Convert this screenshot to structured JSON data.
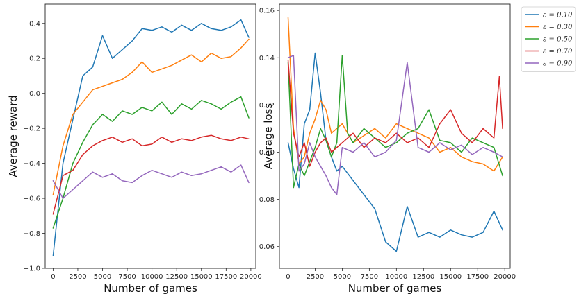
{
  "chart_data": [
    {
      "type": "line",
      "xlabel": "Number of games",
      "ylabel": "Average reward",
      "xlim": [
        -800,
        20500
      ],
      "ylim": [
        -1.0,
        0.51
      ],
      "xticks": [
        0,
        2500,
        5000,
        7500,
        10000,
        12500,
        15000,
        17500,
        20000
      ],
      "yticks": [
        -1.0,
        -0.8,
        -0.6,
        -0.4,
        -0.2,
        0.0,
        0.2,
        0.4
      ],
      "ytick_labels": [
        "−1.0",
        "−0.8",
        "−0.6",
        "−0.4",
        "−0.2",
        "0.0",
        "0.2",
        "0.4"
      ],
      "grid": false,
      "series": [
        {
          "name": "ε = 0.10",
          "color": "#1f77b4",
          "x": [
            0,
            1000,
            2000,
            3000,
            4000,
            5000,
            6000,
            7000,
            8000,
            9000,
            10000,
            11000,
            12000,
            13000,
            14000,
            15000,
            16000,
            17000,
            18000,
            19000,
            19800
          ],
          "y": [
            -0.93,
            -0.4,
            -0.15,
            0.1,
            0.15,
            0.33,
            0.2,
            0.25,
            0.3,
            0.37,
            0.36,
            0.38,
            0.35,
            0.39,
            0.36,
            0.4,
            0.37,
            0.36,
            0.38,
            0.42,
            0.32
          ]
        },
        {
          "name": "ε = 0.30",
          "color": "#ff7f0e",
          "x": [
            0,
            1000,
            2000,
            3000,
            4000,
            5000,
            6000,
            7000,
            8000,
            9000,
            10000,
            11000,
            12000,
            13000,
            14000,
            15000,
            16000,
            17000,
            18000,
            19000,
            19800
          ],
          "y": [
            -0.58,
            -0.3,
            -0.12,
            -0.05,
            0.02,
            0.04,
            0.06,
            0.08,
            0.12,
            0.18,
            0.12,
            0.14,
            0.16,
            0.19,
            0.22,
            0.18,
            0.23,
            0.2,
            0.21,
            0.26,
            0.31
          ]
        },
        {
          "name": "ε = 0.50",
          "color": "#2ca02c",
          "x": [
            0,
            1000,
            2000,
            3000,
            4000,
            5000,
            6000,
            7000,
            8000,
            9000,
            10000,
            11000,
            12000,
            13000,
            14000,
            15000,
            16000,
            17000,
            18000,
            19000,
            19800
          ],
          "y": [
            -0.77,
            -0.6,
            -0.4,
            -0.28,
            -0.18,
            -0.12,
            -0.16,
            -0.1,
            -0.12,
            -0.08,
            -0.1,
            -0.05,
            -0.12,
            -0.06,
            -0.09,
            -0.04,
            -0.06,
            -0.09,
            -0.05,
            -0.02,
            -0.14
          ]
        },
        {
          "name": "ε = 0.70",
          "color": "#d62728",
          "x": [
            0,
            1000,
            2000,
            3000,
            4000,
            5000,
            6000,
            7000,
            8000,
            9000,
            10000,
            11000,
            12000,
            13000,
            14000,
            15000,
            16000,
            17000,
            18000,
            19000,
            19800
          ],
          "y": [
            -0.69,
            -0.47,
            -0.44,
            -0.35,
            -0.3,
            -0.27,
            -0.25,
            -0.28,
            -0.26,
            -0.3,
            -0.29,
            -0.25,
            -0.28,
            -0.26,
            -0.27,
            -0.25,
            -0.24,
            -0.26,
            -0.27,
            -0.25,
            -0.26
          ]
        },
        {
          "name": "ε = 0.90",
          "color": "#9467bd",
          "x": [
            0,
            1000,
            2000,
            3000,
            4000,
            5000,
            6000,
            7000,
            8000,
            9000,
            10000,
            11000,
            12000,
            13000,
            14000,
            15000,
            16000,
            17000,
            18000,
            19000,
            19800
          ],
          "y": [
            -0.5,
            -0.6,
            -0.55,
            -0.5,
            -0.45,
            -0.48,
            -0.46,
            -0.5,
            -0.51,
            -0.47,
            -0.44,
            -0.46,
            -0.48,
            -0.45,
            -0.47,
            -0.46,
            -0.44,
            -0.42,
            -0.45,
            -0.41,
            -0.51
          ]
        }
      ]
    },
    {
      "type": "line",
      "xlabel": "Number of games",
      "ylabel": "Average loss",
      "xlim": [
        -800,
        20500
      ],
      "ylim": [
        0.0508,
        0.1627
      ],
      "xticks": [
        0,
        2500,
        5000,
        7500,
        10000,
        12500,
        15000,
        17500,
        20000
      ],
      "yticks": [
        0.06,
        0.08,
        0.1,
        0.12,
        0.14,
        0.16
      ],
      "ytick_labels": [
        "0.06",
        "0.08",
        "0.10",
        "0.12",
        "0.14",
        "0.16"
      ],
      "grid": false,
      "legend": "outside-top-right",
      "series": [
        {
          "name": "ε = 0.10",
          "color": "#1f77b4",
          "x": [
            0,
            500,
            1000,
            1500,
            2000,
            2500,
            3000,
            3500,
            4000,
            4500,
            5000,
            6000,
            7000,
            8000,
            9000,
            10000,
            11000,
            12000,
            13000,
            14000,
            15000,
            16000,
            17000,
            18000,
            19000,
            19800
          ],
          "y": [
            0.104,
            0.093,
            0.085,
            0.112,
            0.118,
            0.142,
            0.125,
            0.105,
            0.098,
            0.092,
            0.094,
            0.088,
            0.082,
            0.076,
            0.062,
            0.058,
            0.077,
            0.064,
            0.066,
            0.064,
            0.067,
            0.065,
            0.064,
            0.066,
            0.075,
            0.067
          ]
        },
        {
          "name": "ε = 0.30",
          "color": "#ff7f0e",
          "x": [
            0,
            500,
            1000,
            1500,
            2000,
            2500,
            3000,
            3500,
            4000,
            5000,
            6000,
            7000,
            8000,
            9000,
            10000,
            11000,
            12000,
            13000,
            14000,
            15000,
            16000,
            17000,
            18000,
            19000,
            19800
          ],
          "y": [
            0.157,
            0.11,
            0.095,
            0.098,
            0.108,
            0.114,
            0.122,
            0.118,
            0.108,
            0.112,
            0.104,
            0.107,
            0.11,
            0.106,
            0.112,
            0.11,
            0.108,
            0.106,
            0.1,
            0.102,
            0.098,
            0.096,
            0.095,
            0.092,
            0.098
          ]
        },
        {
          "name": "ε = 0.50",
          "color": "#2ca02c",
          "x": [
            0,
            500,
            1000,
            1500,
            2000,
            2500,
            3000,
            3500,
            4000,
            4500,
            5000,
            5500,
            6000,
            7000,
            8000,
            9000,
            10000,
            11000,
            12000,
            13000,
            14000,
            15000,
            16000,
            17000,
            18000,
            19000,
            19800
          ],
          "y": [
            0.138,
            0.085,
            0.095,
            0.09,
            0.096,
            0.102,
            0.11,
            0.105,
            0.098,
            0.104,
            0.141,
            0.108,
            0.104,
            0.11,
            0.106,
            0.102,
            0.104,
            0.108,
            0.11,
            0.118,
            0.105,
            0.104,
            0.1,
            0.106,
            0.104,
            0.102,
            0.09
          ]
        },
        {
          "name": "ε = 0.70",
          "color": "#d62728",
          "x": [
            0,
            500,
            1000,
            1500,
            2000,
            2500,
            3000,
            3500,
            4000,
            5000,
            6000,
            7000,
            8000,
            9000,
            10000,
            11000,
            12000,
            13000,
            14000,
            15000,
            16000,
            17000,
            18000,
            19000,
            19500,
            19800
          ],
          "y": [
            0.139,
            0.108,
            0.098,
            0.104,
            0.094,
            0.1,
            0.104,
            0.106,
            0.1,
            0.104,
            0.108,
            0.102,
            0.106,
            0.104,
            0.108,
            0.104,
            0.106,
            0.102,
            0.112,
            0.118,
            0.108,
            0.104,
            0.11,
            0.106,
            0.132,
            0.11
          ]
        },
        {
          "name": "ε = 0.90",
          "color": "#9467bd",
          "x": [
            0,
            500,
            1000,
            1500,
            2000,
            2500,
            3000,
            3500,
            4000,
            4500,
            5000,
            6000,
            7000,
            8000,
            9000,
            10000,
            11000,
            12000,
            13000,
            14000,
            15000,
            16000,
            17000,
            18000,
            19000,
            19800
          ],
          "y": [
            0.14,
            0.141,
            0.092,
            0.095,
            0.104,
            0.098,
            0.094,
            0.09,
            0.085,
            0.082,
            0.102,
            0.1,
            0.104,
            0.098,
            0.1,
            0.105,
            0.138,
            0.102,
            0.1,
            0.104,
            0.101,
            0.103,
            0.099,
            0.102,
            0.1,
            0.098
          ]
        }
      ]
    }
  ]
}
